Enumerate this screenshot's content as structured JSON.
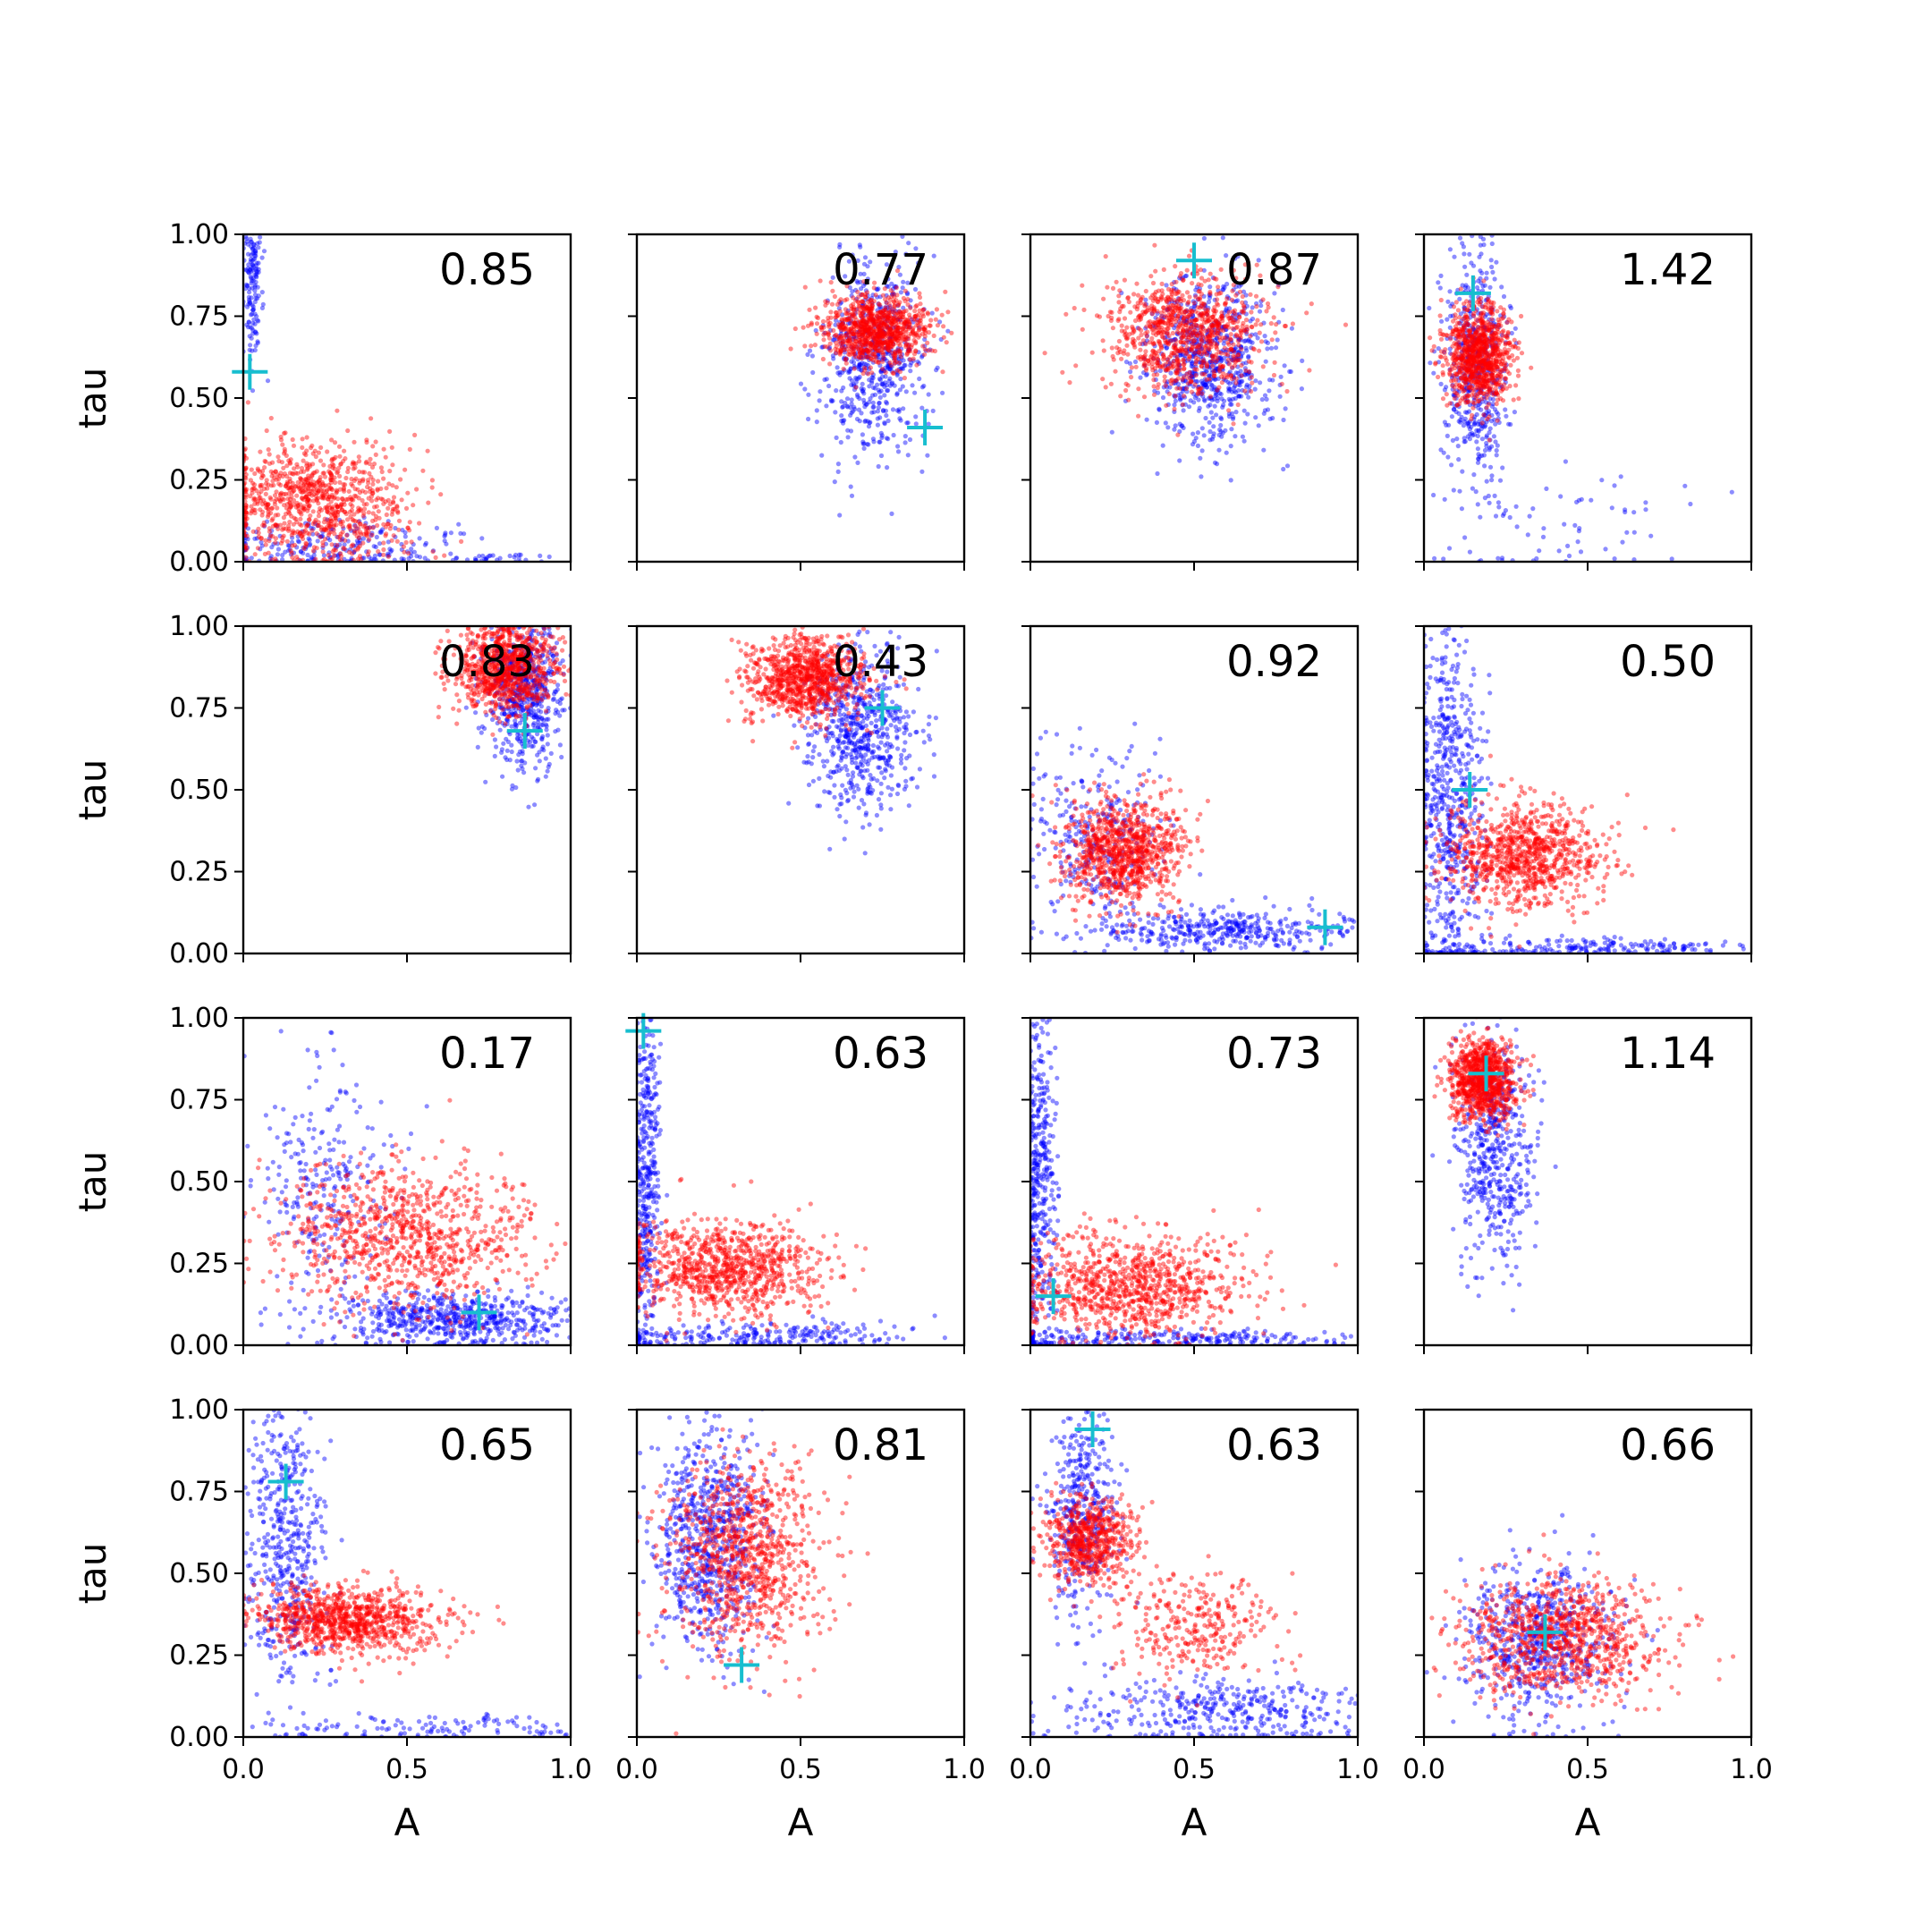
{
  "chart_data": {
    "type": "scatter",
    "grid": "4x4 small multiples, shared axes",
    "xlabel": "A",
    "ylabel": "tau",
    "xlim": [
      0.0,
      1.0
    ],
    "ylim": [
      0.0,
      1.0
    ],
    "xticks": [
      "0.0",
      "0.5",
      "1.0"
    ],
    "yticks": [
      "0.00",
      "0.25",
      "0.50",
      "0.75",
      "1.00"
    ],
    "colors": {
      "blue": "#0000ff",
      "red": "#ff0000",
      "marker": "#17becf"
    },
    "panels": [
      {
        "value": "0.85",
        "marker": [
          0.02,
          0.58
        ],
        "blue": [
          {
            "cx": 0.03,
            "cy": 0.85,
            "sx": 0.015,
            "sy": 0.12,
            "n": 160
          },
          {
            "cx": 0.25,
            "cy": 0.05,
            "sx": 0.2,
            "sy": 0.04,
            "n": 220
          },
          {
            "cx": 0.75,
            "cy": 0.01,
            "sx": 0.15,
            "sy": 0.008,
            "n": 40
          }
        ],
        "red": [
          {
            "cx": 0.22,
            "cy": 0.18,
            "sx": 0.14,
            "sy": 0.09,
            "n": 900
          }
        ]
      },
      {
        "value": "0.77",
        "marker": [
          0.88,
          0.41
        ],
        "blue": [
          {
            "cx": 0.72,
            "cy": 0.62,
            "sx": 0.08,
            "sy": 0.15,
            "n": 600
          }
        ],
        "red": [
          {
            "cx": 0.73,
            "cy": 0.71,
            "sx": 0.08,
            "sy": 0.05,
            "n": 900
          }
        ]
      },
      {
        "value": "0.87",
        "marker": [
          0.5,
          0.92
        ],
        "blue": [
          {
            "cx": 0.55,
            "cy": 0.6,
            "sx": 0.1,
            "sy": 0.13,
            "n": 700
          }
        ],
        "red": [
          {
            "cx": 0.48,
            "cy": 0.7,
            "sx": 0.12,
            "sy": 0.09,
            "n": 900
          }
        ]
      },
      {
        "value": "1.42",
        "marker": [
          0.15,
          0.82
        ],
        "blue": [
          {
            "cx": 0.16,
            "cy": 0.6,
            "sx": 0.05,
            "sy": 0.2,
            "n": 500
          },
          {
            "cx": 0.45,
            "cy": 0.1,
            "sx": 0.2,
            "sy": 0.08,
            "n": 60
          }
        ],
        "red": [
          {
            "cx": 0.17,
            "cy": 0.63,
            "sx": 0.05,
            "sy": 0.07,
            "n": 900
          }
        ]
      },
      {
        "value": "0.83",
        "marker": [
          0.86,
          0.68
        ],
        "blue": [
          {
            "cx": 0.86,
            "cy": 0.8,
            "sx": 0.06,
            "sy": 0.12,
            "n": 600
          }
        ],
        "red": [
          {
            "cx": 0.8,
            "cy": 0.88,
            "sx": 0.08,
            "sy": 0.07,
            "n": 900
          }
        ]
      },
      {
        "value": "0.43",
        "marker": [
          0.75,
          0.75
        ],
        "blue": [
          {
            "cx": 0.68,
            "cy": 0.68,
            "sx": 0.08,
            "sy": 0.12,
            "n": 600
          }
        ],
        "red": [
          {
            "cx": 0.52,
            "cy": 0.84,
            "sx": 0.09,
            "sy": 0.06,
            "n": 900
          }
        ]
      },
      {
        "value": "0.92",
        "marker": [
          0.9,
          0.08
        ],
        "blue": [
          {
            "cx": 0.2,
            "cy": 0.35,
            "sx": 0.1,
            "sy": 0.15,
            "n": 300
          },
          {
            "cx": 0.6,
            "cy": 0.07,
            "sx": 0.22,
            "sy": 0.03,
            "n": 400
          }
        ],
        "red": [
          {
            "cx": 0.28,
            "cy": 0.31,
            "sx": 0.09,
            "sy": 0.08,
            "n": 900
          }
        ]
      },
      {
        "value": "0.50",
        "marker": [
          0.14,
          0.5
        ],
        "blue": [
          {
            "cx": 0.08,
            "cy": 0.45,
            "sx": 0.05,
            "sy": 0.28,
            "n": 600
          },
          {
            "cx": 0.5,
            "cy": 0.02,
            "sx": 0.25,
            "sy": 0.015,
            "n": 200
          }
        ],
        "red": [
          {
            "cx": 0.3,
            "cy": 0.3,
            "sx": 0.12,
            "sy": 0.08,
            "n": 900
          }
        ]
      },
      {
        "value": "0.17",
        "marker": [
          0.72,
          0.1
        ],
        "blue": [
          {
            "cx": 0.25,
            "cy": 0.5,
            "sx": 0.1,
            "sy": 0.18,
            "n": 250
          },
          {
            "cx": 0.65,
            "cy": 0.08,
            "sx": 0.2,
            "sy": 0.04,
            "n": 600
          }
        ],
        "red": [
          {
            "cx": 0.5,
            "cy": 0.33,
            "sx": 0.2,
            "sy": 0.11,
            "n": 900
          }
        ]
      },
      {
        "value": "0.63",
        "marker": [
          0.02,
          0.96
        ],
        "blue": [
          {
            "cx": 0.03,
            "cy": 0.55,
            "sx": 0.02,
            "sy": 0.27,
            "n": 400
          },
          {
            "cx": 0.35,
            "cy": 0.03,
            "sx": 0.25,
            "sy": 0.02,
            "n": 250
          }
        ],
        "red": [
          {
            "cx": 0.28,
            "cy": 0.24,
            "sx": 0.15,
            "sy": 0.07,
            "n": 900
          }
        ]
      },
      {
        "value": "0.73",
        "marker": [
          0.07,
          0.15
        ],
        "blue": [
          {
            "cx": 0.03,
            "cy": 0.5,
            "sx": 0.025,
            "sy": 0.28,
            "n": 400
          },
          {
            "cx": 0.4,
            "cy": 0.02,
            "sx": 0.3,
            "sy": 0.015,
            "n": 250
          }
        ],
        "red": [
          {
            "cx": 0.3,
            "cy": 0.18,
            "sx": 0.16,
            "sy": 0.08,
            "n": 900
          }
        ]
      },
      {
        "value": "1.14",
        "marker": [
          0.19,
          0.83
        ],
        "blue": [
          {
            "cx": 0.22,
            "cy": 0.6,
            "sx": 0.06,
            "sy": 0.18,
            "n": 500
          }
        ],
        "red": [
          {
            "cx": 0.18,
            "cy": 0.81,
            "sx": 0.05,
            "sy": 0.06,
            "n": 900
          }
        ]
      },
      {
        "value": "0.65",
        "marker": [
          0.13,
          0.78
        ],
        "blue": [
          {
            "cx": 0.13,
            "cy": 0.6,
            "sx": 0.06,
            "sy": 0.25,
            "n": 500
          },
          {
            "cx": 0.55,
            "cy": 0.03,
            "sx": 0.25,
            "sy": 0.02,
            "n": 120
          }
        ],
        "red": [
          {
            "cx": 0.32,
            "cy": 0.36,
            "sx": 0.14,
            "sy": 0.05,
            "n": 900
          }
        ]
      },
      {
        "value": "0.81",
        "marker": [
          0.32,
          0.22
        ],
        "blue": [
          {
            "cx": 0.22,
            "cy": 0.6,
            "sx": 0.08,
            "sy": 0.17,
            "n": 700
          }
        ],
        "red": [
          {
            "cx": 0.33,
            "cy": 0.55,
            "sx": 0.12,
            "sy": 0.15,
            "n": 900
          }
        ]
      },
      {
        "value": "0.63",
        "marker": [
          0.19,
          0.94
        ],
        "blue": [
          {
            "cx": 0.16,
            "cy": 0.7,
            "sx": 0.05,
            "sy": 0.15,
            "n": 400
          },
          {
            "cx": 0.6,
            "cy": 0.08,
            "sx": 0.25,
            "sy": 0.05,
            "n": 400
          }
        ],
        "red": [
          {
            "cx": 0.18,
            "cy": 0.6,
            "sx": 0.07,
            "sy": 0.07,
            "n": 600
          },
          {
            "cx": 0.5,
            "cy": 0.33,
            "sx": 0.12,
            "sy": 0.08,
            "n": 300
          }
        ]
      },
      {
        "value": "0.66",
        "marker": [
          0.37,
          0.32
        ],
        "blue": [
          {
            "cx": 0.35,
            "cy": 0.3,
            "sx": 0.12,
            "sy": 0.12,
            "n": 600
          }
        ],
        "red": [
          {
            "cx": 0.42,
            "cy": 0.3,
            "sx": 0.15,
            "sy": 0.09,
            "n": 900
          }
        ]
      }
    ]
  }
}
